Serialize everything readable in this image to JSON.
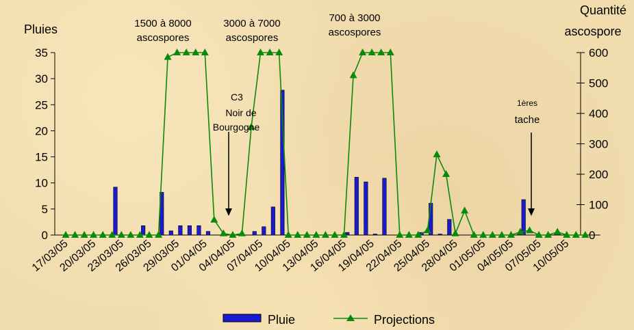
{
  "chart_data": {
    "type": "bar+line",
    "y_left_label": "Pluies",
    "y_right_label_line1": "Quantité",
    "y_right_label_line2": "ascospore",
    "y_left_range": [
      0,
      35
    ],
    "y_right_range": [
      0,
      600
    ],
    "y_left_ticks": [
      "0",
      "5",
      "10",
      "15",
      "20",
      "25",
      "30",
      "35"
    ],
    "y_right_ticks": [
      "0",
      "100",
      "200",
      "300",
      "400",
      "500",
      "600"
    ],
    "x_tick_labels": [
      "17/03/05",
      "20/03/05",
      "23/03/05",
      "26/03/05",
      "29/03/05",
      "01/04/05",
      "04/04/05",
      "07/04/05",
      "10/04/05",
      "13/04/05",
      "16/04/05",
      "19/04/05",
      "22/04/05",
      "25/04/05",
      "28/04/05",
      "01/05/05",
      "04/05/05",
      "07/05/05",
      "10/05/05"
    ],
    "dates": [
      "17/03/05",
      "18/03/05",
      "19/03/05",
      "20/03/05",
      "21/03/05",
      "22/03/05",
      "23/03/05",
      "24/03/05",
      "25/03/05",
      "26/03/05",
      "27/03/05",
      "28/03/05",
      "29/03/05",
      "30/03/05",
      "31/03/05",
      "01/04/05",
      "02/04/05",
      "03/04/05",
      "04/04/05",
      "05/04/05",
      "06/04/05",
      "07/04/05",
      "08/04/05",
      "09/04/05",
      "10/04/05",
      "11/04/05",
      "12/04/05",
      "13/04/05",
      "14/04/05",
      "15/04/05",
      "16/04/05",
      "17/04/05",
      "18/04/05",
      "19/04/05",
      "20/04/05",
      "21/04/05",
      "22/04/05",
      "23/04/05",
      "24/04/05",
      "25/04/05",
      "26/04/05",
      "27/04/05",
      "28/04/05",
      "29/04/05",
      "30/04/05",
      "01/05/05",
      "02/05/05",
      "03/05/05",
      "04/05/05",
      "05/05/05",
      "06/05/05",
      "07/05/05",
      "08/05/05",
      "09/05/05",
      "10/05/05",
      "11/05/05",
      "12/05/05"
    ],
    "series": [
      {
        "name": "Pluie",
        "type": "bar",
        "axis": "left",
        "color": "#1a1ad0",
        "values": [
          0,
          0,
          0,
          0,
          0,
          9.2,
          0,
          0,
          1.8,
          0,
          8.2,
          0.8,
          1.8,
          1.8,
          1.8,
          0.7,
          0,
          0,
          0,
          0,
          0.7,
          1.6,
          5.4,
          27.8,
          0,
          0,
          0,
          0,
          0,
          0,
          0.5,
          11.1,
          10.2,
          0.2,
          10.9,
          0,
          0,
          0,
          0.5,
          6.1,
          0.2,
          3,
          0,
          0,
          0,
          0,
          0,
          0,
          0,
          6.8,
          0,
          0,
          0,
          0,
          0,
          0,
          0
        ]
      },
      {
        "name": "Projections",
        "type": "line",
        "axis": "right",
        "color": "#0a8a0a",
        "values": [
          0,
          0,
          0,
          0,
          0,
          0,
          0,
          0,
          0,
          0,
          0,
          585,
          600,
          600,
          600,
          600,
          50,
          5,
          0,
          5,
          355,
          600,
          600,
          600,
          0,
          0,
          0,
          0,
          0,
          0,
          0,
          525,
          600,
          600,
          600,
          600,
          0,
          0,
          0,
          15,
          265,
          200,
          5,
          80,
          0,
          0,
          0,
          0,
          0,
          10,
          15,
          0,
          0,
          10,
          0,
          0,
          0
        ]
      }
    ],
    "annotations": [
      {
        "lines": [
          "1500 à 8000",
          "ascospores"
        ]
      },
      {
        "lines": [
          "3000 à 7000",
          "ascospores"
        ]
      },
      {
        "lines": [
          "700 à 3000",
          "ascospores"
        ]
      },
      {
        "lines": [
          "C3",
          "Noir de",
          "Bourgogne"
        ]
      },
      {
        "lines": [
          "1ères",
          "tache"
        ]
      }
    ],
    "legend": [
      "Pluie",
      "Projections"
    ],
    "legend_position": "bottom"
  }
}
